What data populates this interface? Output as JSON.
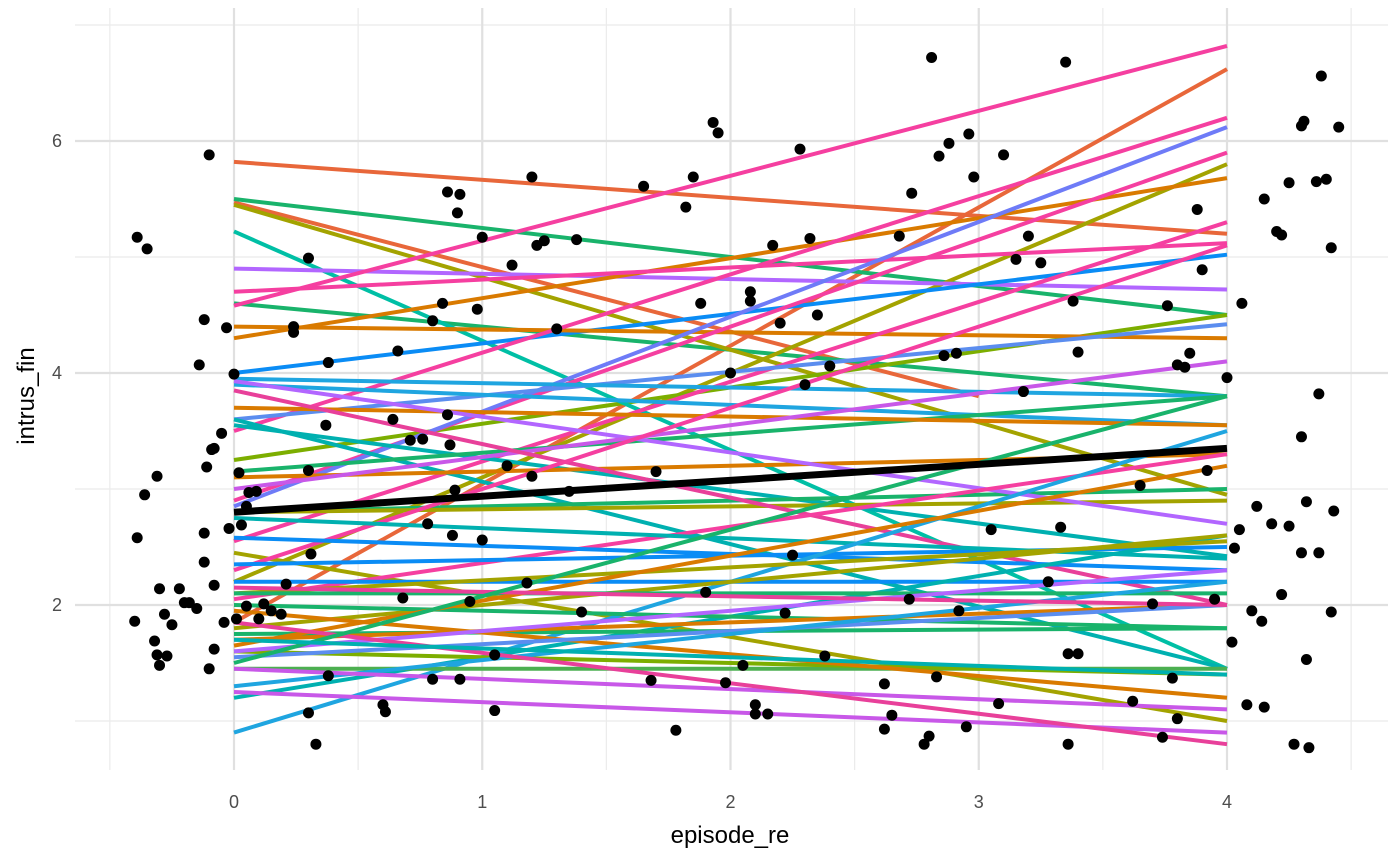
{
  "chart_data": {
    "type": "scatter",
    "title": "",
    "xlabel": "episode_re",
    "ylabel": "intrus_fin",
    "xlim": [
      -0.5,
      4.5
    ],
    "ylim": [
      0.7,
      7.0
    ],
    "x_ticks": [
      "0",
      "1",
      "2",
      "3",
      "4"
    ],
    "y_ticks": [
      "2",
      "4",
      "6"
    ],
    "grid": true,
    "legend": "none",
    "points": [
      [
        -0.39,
        5.17
      ],
      [
        -0.35,
        5.07
      ],
      [
        -0.31,
        3.11
      ],
      [
        -0.36,
        2.95
      ],
      [
        -0.39,
        2.58
      ],
      [
        -0.4,
        1.86
      ],
      [
        -0.32,
        1.69
      ],
      [
        -0.31,
        1.57
      ],
      [
        -0.3,
        1.48
      ],
      [
        -0.28,
        1.92
      ],
      [
        -0.27,
        1.56
      ],
      [
        -0.25,
        1.83
      ],
      [
        -0.3,
        2.14
      ],
      [
        -0.22,
        2.14
      ],
      [
        -0.2,
        2.02
      ],
      [
        -0.18,
        2.02
      ],
      [
        -0.15,
        1.97
      ],
      [
        -0.14,
        4.07
      ],
      [
        -0.12,
        4.46
      ],
      [
        -0.1,
        5.88
      ],
      [
        -0.11,
        3.19
      ],
      [
        -0.09,
        3.34
      ],
      [
        -0.08,
        3.35
      ],
      [
        -0.05,
        3.48
      ],
      [
        -0.12,
        2.37
      ],
      [
        -0.12,
        2.62
      ],
      [
        -0.08,
        2.17
      ],
      [
        -0.1,
        1.45
      ],
      [
        -0.08,
        1.62
      ],
      [
        -0.03,
        4.39
      ],
      [
        0.0,
        3.99
      ],
      [
        -0.02,
        2.66
      ],
      [
        -0.04,
        1.85
      ],
      [
        0.01,
        1.88
      ],
      [
        0.02,
        3.14
      ],
      [
        0.05,
        2.85
      ],
      [
        0.03,
        2.69
      ],
      [
        0.06,
        2.97
      ],
      [
        0.09,
        2.98
      ],
      [
        0.05,
        1.99
      ],
      [
        0.1,
        1.88
      ],
      [
        0.12,
        2.01
      ],
      [
        0.15,
        1.95
      ],
      [
        0.19,
        1.92
      ],
      [
        0.21,
        2.18
      ],
      [
        0.24,
        4.35
      ],
      [
        0.24,
        4.4
      ],
      [
        0.3,
        4.99
      ],
      [
        0.3,
        3.16
      ],
      [
        0.31,
        2.44
      ],
      [
        0.38,
        1.39
      ],
      [
        0.38,
        4.09
      ],
      [
        0.37,
        3.55
      ],
      [
        0.3,
        1.07
      ],
      [
        0.33,
        0.8
      ],
      [
        0.6,
        1.14
      ],
      [
        0.61,
        1.08
      ],
      [
        0.68,
        2.06
      ],
      [
        0.64,
        3.6
      ],
      [
        0.66,
        4.19
      ],
      [
        0.71,
        3.42
      ],
      [
        0.76,
        3.43
      ],
      [
        0.78,
        2.7
      ],
      [
        0.8,
        1.36
      ],
      [
        0.8,
        4.45
      ],
      [
        0.84,
        4.6
      ],
      [
        0.86,
        3.64
      ],
      [
        0.87,
        3.38
      ],
      [
        0.88,
        2.6
      ],
      [
        0.89,
        2.99
      ],
      [
        0.86,
        5.56
      ],
      [
        0.91,
        5.54
      ],
      [
        0.9,
        5.38
      ],
      [
        0.91,
        1.36
      ],
      [
        0.95,
        2.03
      ],
      [
        0.98,
        4.55
      ],
      [
        1.0,
        2.56
      ],
      [
        1.0,
        5.17
      ],
      [
        1.05,
        1.57
      ],
      [
        1.05,
        1.09
      ],
      [
        1.1,
        3.2
      ],
      [
        1.12,
        4.93
      ],
      [
        1.18,
        2.19
      ],
      [
        1.2,
        5.69
      ],
      [
        1.2,
        3.11
      ],
      [
        1.22,
        5.1
      ],
      [
        1.25,
        5.14
      ],
      [
        1.3,
        4.38
      ],
      [
        1.35,
        2.98
      ],
      [
        1.38,
        5.15
      ],
      [
        1.4,
        1.94
      ],
      [
        1.65,
        5.61
      ],
      [
        1.68,
        1.35
      ],
      [
        1.7,
        3.15
      ],
      [
        1.78,
        0.92
      ],
      [
        1.82,
        5.43
      ],
      [
        1.85,
        5.69
      ],
      [
        1.88,
        4.6
      ],
      [
        1.9,
        2.11
      ],
      [
        1.93,
        6.16
      ],
      [
        1.95,
        6.07
      ],
      [
        1.98,
        1.33
      ],
      [
        2.0,
        4.0
      ],
      [
        2.05,
        1.48
      ],
      [
        2.08,
        4.7
      ],
      [
        2.08,
        4.62
      ],
      [
        2.1,
        1.14
      ],
      [
        2.1,
        1.06
      ],
      [
        2.15,
        1.06
      ],
      [
        2.17,
        5.1
      ],
      [
        2.2,
        4.43
      ],
      [
        2.22,
        1.93
      ],
      [
        2.25,
        2.43
      ],
      [
        2.28,
        5.93
      ],
      [
        2.3,
        3.9
      ],
      [
        2.32,
        5.16
      ],
      [
        2.35,
        4.5
      ],
      [
        2.38,
        1.56
      ],
      [
        2.4,
        4.06
      ],
      [
        2.62,
        0.93
      ],
      [
        2.62,
        1.32
      ],
      [
        2.65,
        1.05
      ],
      [
        2.68,
        5.18
      ],
      [
        2.72,
        2.05
      ],
      [
        2.78,
        0.8
      ],
      [
        2.8,
        0.87
      ],
      [
        2.81,
        6.72
      ],
      [
        2.83,
        1.38
      ],
      [
        2.84,
        5.87
      ],
      [
        2.86,
        4.15
      ],
      [
        2.88,
        5.98
      ],
      [
        2.91,
        4.17
      ],
      [
        2.92,
        1.95
      ],
      [
        2.95,
        0.95
      ],
      [
        2.96,
        6.06
      ],
      [
        2.98,
        5.69
      ],
      [
        2.73,
        5.55
      ],
      [
        3.05,
        2.65
      ],
      [
        3.08,
        1.15
      ],
      [
        3.1,
        5.88
      ],
      [
        3.15,
        4.98
      ],
      [
        3.18,
        3.84
      ],
      [
        3.2,
        5.18
      ],
      [
        3.25,
        4.95
      ],
      [
        3.28,
        2.2
      ],
      [
        3.33,
        2.67
      ],
      [
        3.35,
        6.68
      ],
      [
        3.36,
        1.58
      ],
      [
        3.36,
        0.8
      ],
      [
        3.38,
        4.62
      ],
      [
        3.4,
        1.58
      ],
      [
        3.4,
        4.18
      ],
      [
        3.62,
        1.17
      ],
      [
        3.65,
        3.03
      ],
      [
        3.7,
        2.01
      ],
      [
        3.74,
        0.86
      ],
      [
        3.76,
        4.58
      ],
      [
        3.78,
        1.37
      ],
      [
        3.8,
        4.07
      ],
      [
        3.83,
        4.05
      ],
      [
        3.85,
        4.17
      ],
      [
        3.88,
        5.41
      ],
      [
        3.9,
        4.89
      ],
      [
        3.92,
        3.16
      ],
      [
        3.95,
        2.05
      ],
      [
        3.8,
        1.02
      ],
      [
        4.0,
        3.96
      ],
      [
        4.02,
        1.68
      ],
      [
        4.03,
        2.49
      ],
      [
        4.06,
        4.6
      ],
      [
        4.08,
        1.14
      ],
      [
        4.1,
        1.95
      ],
      [
        4.15,
        1.12
      ],
      [
        4.15,
        5.5
      ],
      [
        4.2,
        5.22
      ],
      [
        4.22,
        5.19
      ],
      [
        4.22,
        2.09
      ],
      [
        4.25,
        5.64
      ],
      [
        4.27,
        0.8
      ],
      [
        4.3,
        2.45
      ],
      [
        4.3,
        3.45
      ],
      [
        4.3,
        6.13
      ],
      [
        4.31,
        6.17
      ],
      [
        4.32,
        2.89
      ],
      [
        4.32,
        1.53
      ],
      [
        4.33,
        0.77
      ],
      [
        4.36,
        5.65
      ],
      [
        4.37,
        2.45
      ],
      [
        4.37,
        3.82
      ],
      [
        4.38,
        6.56
      ],
      [
        4.4,
        5.67
      ],
      [
        4.42,
        5.08
      ],
      [
        4.42,
        1.94
      ],
      [
        4.43,
        2.81
      ],
      [
        4.45,
        6.12
      ],
      [
        4.14,
        1.86
      ],
      [
        4.25,
        2.68
      ],
      [
        4.05,
        2.65
      ],
      [
        4.12,
        2.85
      ],
      [
        4.18,
        2.7
      ]
    ],
    "lines": [
      {
        "x": [
          0,
          4
        ],
        "y": [
          5.82,
          5.2
        ],
        "color": "#e8673a"
      },
      {
        "x": [
          0,
          3
        ],
        "y": [
          5.47,
          3.8
        ],
        "color": "#e8673a"
      },
      {
        "x": [
          0,
          4
        ],
        "y": [
          1.85,
          6.62
        ],
        "color": "#e8673a"
      },
      {
        "x": [
          0,
          4
        ],
        "y": [
          5.5,
          4.5
        ],
        "color": "#19b36b"
      },
      {
        "x": [
          0,
          4
        ],
        "y": [
          4.6,
          3.8
        ],
        "color": "#19b36b"
      },
      {
        "x": [
          0,
          4
        ],
        "y": [
          2.2,
          5.8
        ],
        "color": "#a3a300"
      },
      {
        "x": [
          0,
          4
        ],
        "y": [
          5.45,
          2.95
        ],
        "color": "#a3a300"
      },
      {
        "x": [
          0,
          4
        ],
        "y": [
          3.25,
          4.5
        ],
        "color": "#7cae00"
      },
      {
        "x": [
          0,
          4
        ],
        "y": [
          5.22,
          1.45
        ],
        "color": "#00bfa5"
      },
      {
        "x": [
          0,
          4
        ],
        "y": [
          4.9,
          4.72
        ],
        "color": "#b266ff"
      },
      {
        "x": [
          0,
          4
        ],
        "y": [
          4.0,
          5.02
        ],
        "color": "#0a8cf5"
      },
      {
        "x": [
          0,
          4
        ],
        "y": [
          4.3,
          5.68
        ],
        "color": "#d97a00"
      },
      {
        "x": [
          0,
          4
        ],
        "y": [
          4.4,
          4.3
        ],
        "color": "#d97a00"
      },
      {
        "x": [
          0,
          4
        ],
        "y": [
          4.7,
          5.12
        ],
        "color": "#f53fa0"
      },
      {
        "x": [
          0,
          4
        ],
        "y": [
          4.58,
          6.82
        ],
        "color": "#f53fa0"
      },
      {
        "x": [
          0,
          4
        ],
        "y": [
          3.5,
          6.2
        ],
        "color": "#f53fa0"
      },
      {
        "x": [
          0,
          4
        ],
        "y": [
          2.9,
          5.9
        ],
        "color": "#f53fa0"
      },
      {
        "x": [
          0,
          4
        ],
        "y": [
          2.55,
          5.3
        ],
        "color": "#f53fa0"
      },
      {
        "x": [
          0,
          4
        ],
        "y": [
          2.85,
          6.12
        ],
        "color": "#6e7bf7"
      },
      {
        "x": [
          0,
          4
        ],
        "y": [
          3.6,
          4.42
        ],
        "color": "#5b8def"
      },
      {
        "x": [
          0,
          4
        ],
        "y": [
          3.95,
          3.8
        ],
        "color": "#1fa5e0"
      },
      {
        "x": [
          0,
          4
        ],
        "y": [
          3.9,
          3.55
        ],
        "color": "#1fa5e0"
      },
      {
        "x": [
          0,
          4
        ],
        "y": [
          3.6,
          1.45
        ],
        "color": "#00b0b0"
      },
      {
        "x": [
          0,
          4
        ],
        "y": [
          3.55,
          2.42
        ],
        "color": "#00b0b0"
      },
      {
        "x": [
          0,
          4
        ],
        "y": [
          3.15,
          3.8
        ],
        "color": "#19b36b"
      },
      {
        "x": [
          0,
          4
        ],
        "y": [
          2.8,
          3.0
        ],
        "color": "#19b36b"
      },
      {
        "x": [
          0,
          4
        ],
        "y": [
          3.7,
          3.55
        ],
        "color": "#d97a00"
      },
      {
        "x": [
          0,
          4
        ],
        "y": [
          3.1,
          3.3
        ],
        "color": "#d97a00"
      },
      {
        "x": [
          0,
          4
        ],
        "y": [
          2.8,
          2.9
        ],
        "color": "#a3a300"
      },
      {
        "x": [
          0,
          4
        ],
        "y": [
          2.45,
          1.0
        ],
        "color": "#a3a300"
      },
      {
        "x": [
          0,
          4
        ],
        "y": [
          3.93,
          2.7
        ],
        "color": "#b266ff"
      },
      {
        "x": [
          0,
          4
        ],
        "y": [
          3.0,
          4.1
        ],
        "color": "#c858e8"
      },
      {
        "x": [
          0,
          4
        ],
        "y": [
          3.85,
          2.0
        ],
        "color": "#e8409a"
      },
      {
        "x": [
          0,
          4
        ],
        "y": [
          2.3,
          5.1
        ],
        "color": "#f53fa0"
      },
      {
        "x": [
          0,
          4
        ],
        "y": [
          2.05,
          3.3
        ],
        "color": "#f53fa0"
      },
      {
        "x": [
          0,
          4
        ],
        "y": [
          2.58,
          2.3
        ],
        "color": "#0a8cf5"
      },
      {
        "x": [
          0,
          4
        ],
        "y": [
          2.35,
          2.5
        ],
        "color": "#0a8cf5"
      },
      {
        "x": [
          0,
          4
        ],
        "y": [
          2.2,
          2.2
        ],
        "color": "#0a8cf5"
      },
      {
        "x": [
          0,
          4
        ],
        "y": [
          2.75,
          2.4
        ],
        "color": "#00b0b0"
      },
      {
        "x": [
          0,
          4
        ],
        "y": [
          1.2,
          2.6
        ],
        "color": "#00b0b0"
      },
      {
        "x": [
          0,
          4
        ],
        "y": [
          0.9,
          3.5
        ],
        "color": "#1fa5e0"
      },
      {
        "x": [
          0,
          4
        ],
        "y": [
          2.1,
          2.55
        ],
        "color": "#a3a300"
      },
      {
        "x": [
          0,
          4
        ],
        "y": [
          1.8,
          2.6
        ],
        "color": "#a3a300"
      },
      {
        "x": [
          0,
          4
        ],
        "y": [
          2.0,
          1.8
        ],
        "color": "#19b36b"
      },
      {
        "x": [
          0,
          4
        ],
        "y": [
          1.75,
          1.8
        ],
        "color": "#19b36b"
      },
      {
        "x": [
          0,
          4
        ],
        "y": [
          2.1,
          2.1
        ],
        "color": "#19b36b"
      },
      {
        "x": [
          0,
          4
        ],
        "y": [
          1.45,
          1.45
        ],
        "color": "#4caf50"
      },
      {
        "x": [
          0,
          4
        ],
        "y": [
          1.6,
          1.4
        ],
        "color": "#7cae00"
      },
      {
        "x": [
          0,
          4
        ],
        "y": [
          1.7,
          2.0
        ],
        "color": "#d97a00"
      },
      {
        "x": [
          0,
          4
        ],
        "y": [
          1.65,
          3.2
        ],
        "color": "#d97a00"
      },
      {
        "x": [
          0,
          4
        ],
        "y": [
          1.95,
          1.2
        ],
        "color": "#d97a00"
      },
      {
        "x": [
          0,
          4
        ],
        "y": [
          1.55,
          2.0
        ],
        "color": "#5b8def"
      },
      {
        "x": [
          0,
          4
        ],
        "y": [
          1.6,
          2.3
        ],
        "color": "#b266ff"
      },
      {
        "x": [
          0,
          4
        ],
        "y": [
          1.3,
          2.2
        ],
        "color": "#1fa5e0"
      },
      {
        "x": [
          0,
          4
        ],
        "y": [
          1.45,
          1.1
        ],
        "color": "#c858e8"
      },
      {
        "x": [
          0,
          4
        ],
        "y": [
          1.25,
          0.9
        ],
        "color": "#c858e8"
      },
      {
        "x": [
          0,
          4
        ],
        "y": [
          1.85,
          0.8
        ],
        "color": "#e8409a"
      },
      {
        "x": [
          0,
          4
        ],
        "y": [
          2.15,
          2.0
        ],
        "color": "#e8409a"
      },
      {
        "x": [
          0,
          4
        ],
        "y": [
          1.5,
          3.8
        ],
        "color": "#19b36b"
      },
      {
        "x": [
          0,
          4
        ],
        "y": [
          1.7,
          1.4
        ],
        "color": "#00b0b0"
      },
      {
        "x": [
          0,
          4
        ],
        "y": [
          2.8,
          3.35
        ],
        "color": "#000000",
        "width": 7
      }
    ]
  }
}
